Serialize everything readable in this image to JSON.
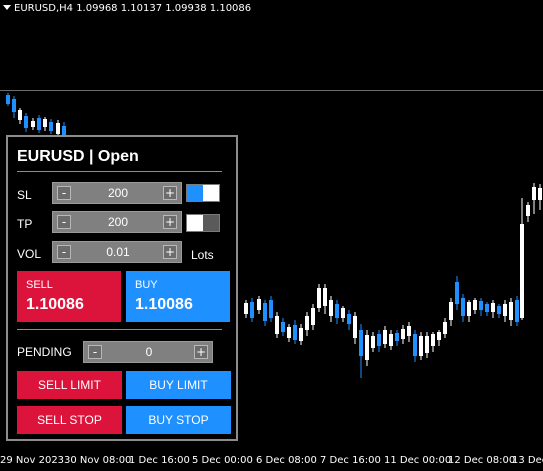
{
  "chart": {
    "symbol_info": "EURUSD,H4  1.09968 1.10137 1.09938 1.10086",
    "bull_color": "#ffffff",
    "bear_color": "#1e90ff",
    "background": "#000000",
    "time_labels": [
      "29 Nov 2023",
      "30 Nov 08:00",
      "1 Dec 16:00",
      "5 Dec 00:00",
      "6 Dec 08:00",
      "7 Dec 16:00",
      "11 Dec 00:00",
      "12 Dec 08:00",
      "13 Dec"
    ]
  },
  "panel": {
    "title": "EURUSD | Open",
    "sl": {
      "label": "SL",
      "value": "200",
      "minus": "-",
      "plus": "+",
      "toggle_on": true
    },
    "tp": {
      "label": "TP",
      "value": "200",
      "minus": "-",
      "plus": "+",
      "toggle_on": false
    },
    "vol": {
      "label": "VOL",
      "value": "0.01",
      "minus": "-",
      "plus": "+",
      "unit": "Lots"
    },
    "sell": {
      "label": "SELL",
      "price": "1.10086"
    },
    "buy": {
      "label": "BUY",
      "price": "1.10086"
    },
    "pending": {
      "label": "PENDING",
      "value": "0",
      "minus": "-",
      "plus": "+"
    },
    "sell_limit": "SELL LIMIT",
    "buy_limit": "BUY LIMIT",
    "sell_stop": "SELL STOP",
    "buy_stop": "BUY STOP",
    "colors": {
      "sell": "#dc143c",
      "buy": "#1e90ff",
      "toggle_on": "#1e90ff",
      "toggle_off": "#5a5a5a"
    }
  }
}
